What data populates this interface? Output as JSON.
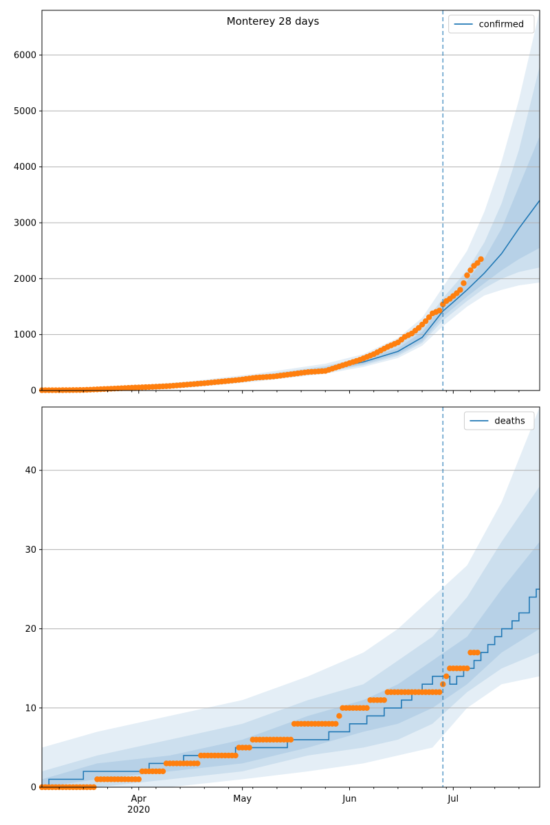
{
  "figure": {
    "title": "Monterey 28 days",
    "x_ticks": [
      {
        "date": "2020-04-01",
        "label": "Apr",
        "sub": "2020"
      },
      {
        "date": "2020-05-01",
        "label": "May",
        "sub": ""
      },
      {
        "date": "2020-06-01",
        "label": "Jun",
        "sub": ""
      },
      {
        "date": "2020-07-01",
        "label": "Jul",
        "sub": ""
      }
    ],
    "xlim": [
      "2020-03-04",
      "2020-07-26"
    ],
    "vline_date": "2020-06-28",
    "colors": {
      "model": "#1f77b4",
      "observed": "#ff7f0e",
      "band": "#1f77b4",
      "grid": "#b0b0b0"
    }
  },
  "chart_data": [
    {
      "type": "line",
      "legend": "confirmed",
      "legend_position": "top-right",
      "grid": "y",
      "ylim": [
        0,
        6800
      ],
      "yticks": [
        0,
        1000,
        2000,
        3000,
        4000,
        5000,
        6000
      ],
      "model_line": [
        [
          "2020-03-04",
          10
        ],
        [
          "2020-03-15",
          15
        ],
        [
          "2020-03-25",
          35
        ],
        [
          "2020-04-05",
          60
        ],
        [
          "2020-04-15",
          100
        ],
        [
          "2020-04-25",
          150
        ],
        [
          "2020-05-05",
          220
        ],
        [
          "2020-05-15",
          290
        ],
        [
          "2020-05-25",
          380
        ],
        [
          "2020-06-05",
          510
        ],
        [
          "2020-06-15",
          700
        ],
        [
          "2020-06-22",
          950
        ],
        [
          "2020-06-28",
          1420
        ],
        [
          "2020-07-01",
          1580
        ],
        [
          "2020-07-05",
          1800
        ],
        [
          "2020-07-10",
          2100
        ],
        [
          "2020-07-15",
          2450
        ],
        [
          "2020-07-20",
          2900
        ],
        [
          "2020-07-26",
          3400
        ]
      ],
      "bands": [
        {
          "name": "outer",
          "points": [
            [
              "2020-03-04",
              0,
              25
            ],
            [
              "2020-03-25",
              0,
              60
            ],
            [
              "2020-04-15",
              50,
              160
            ],
            [
              "2020-05-05",
              160,
              300
            ],
            [
              "2020-05-25",
              300,
              480
            ],
            [
              "2020-06-05",
              420,
              650
            ],
            [
              "2020-06-15",
              580,
              940
            ],
            [
              "2020-06-22",
              800,
              1300
            ],
            [
              "2020-06-28",
              1150,
              1850
            ],
            [
              "2020-07-05",
              1500,
              2500
            ],
            [
              "2020-07-10",
              1700,
              3200
            ],
            [
              "2020-07-15",
              1800,
              4100
            ],
            [
              "2020-07-20",
              1880,
              5200
            ],
            [
              "2020-07-26",
              1930,
              6800
            ]
          ]
        },
        {
          "name": "middle",
          "points": [
            [
              "2020-03-04",
              2,
              20
            ],
            [
              "2020-03-25",
              10,
              50
            ],
            [
              "2020-04-15",
              70,
              140
            ],
            [
              "2020-05-05",
              180,
              270
            ],
            [
              "2020-05-25",
              330,
              440
            ],
            [
              "2020-06-05",
              450,
              590
            ],
            [
              "2020-06-15",
              620,
              820
            ],
            [
              "2020-06-22",
              850,
              1150
            ],
            [
              "2020-06-28",
              1250,
              1650
            ],
            [
              "2020-07-05",
              1600,
              2150
            ],
            [
              "2020-07-10",
              1830,
              2650
            ],
            [
              "2020-07-15",
              2000,
              3350
            ],
            [
              "2020-07-20",
              2120,
              4300
            ],
            [
              "2020-07-26",
              2200,
              5800
            ]
          ]
        },
        {
          "name": "inner",
          "points": [
            [
              "2020-03-04",
              5,
              15
            ],
            [
              "2020-03-25",
              20,
              45
            ],
            [
              "2020-04-15",
              80,
              125
            ],
            [
              "2020-05-05",
              195,
              250
            ],
            [
              "2020-05-25",
              350,
              415
            ],
            [
              "2020-06-05",
              470,
              555
            ],
            [
              "2020-06-15",
              650,
              760
            ],
            [
              "2020-06-22",
              880,
              1050
            ],
            [
              "2020-06-28",
              1320,
              1550
            ],
            [
              "2020-07-05",
              1680,
              1960
            ],
            [
              "2020-07-10",
              1920,
              2360
            ],
            [
              "2020-07-15",
              2150,
              2900
            ],
            [
              "2020-07-20",
              2350,
              3650
            ],
            [
              "2020-07-26",
              2550,
              4550
            ]
          ]
        }
      ],
      "observed": [
        [
          "2020-03-04",
          5
        ],
        [
          "2020-03-10",
          6
        ],
        [
          "2020-03-16",
          10
        ],
        [
          "2020-03-20",
          20
        ],
        [
          "2020-03-25",
          35
        ],
        [
          "2020-03-30",
          50
        ],
        [
          "2020-04-05",
          65
        ],
        [
          "2020-04-10",
          80
        ],
        [
          "2020-04-15",
          105
        ],
        [
          "2020-04-20",
          130
        ],
        [
          "2020-04-25",
          160
        ],
        [
          "2020-04-30",
          190
        ],
        [
          "2020-05-05",
          230
        ],
        [
          "2020-05-10",
          250
        ],
        [
          "2020-05-15",
          290
        ],
        [
          "2020-05-20",
          330
        ],
        [
          "2020-05-25",
          350
        ],
        [
          "2020-05-30",
          450
        ],
        [
          "2020-06-04",
          550
        ],
        [
          "2020-06-08",
          650
        ],
        [
          "2020-06-12",
          780
        ],
        [
          "2020-06-15",
          860
        ],
        [
          "2020-06-17",
          960
        ],
        [
          "2020-06-19",
          1020
        ],
        [
          "2020-06-21",
          1120
        ],
        [
          "2020-06-23",
          1240
        ],
        [
          "2020-06-25",
          1380
        ],
        [
          "2020-06-27",
          1430
        ],
        [
          "2020-06-28",
          1540
        ],
        [
          "2020-06-29",
          1600
        ],
        [
          "2020-06-30",
          1640
        ],
        [
          "2020-07-01",
          1690
        ],
        [
          "2020-07-02",
          1740
        ],
        [
          "2020-07-03",
          1800
        ],
        [
          "2020-07-04",
          1920
        ],
        [
          "2020-07-05",
          2060
        ],
        [
          "2020-07-06",
          2150
        ],
        [
          "2020-07-07",
          2230
        ],
        [
          "2020-07-08",
          2280
        ],
        [
          "2020-07-09",
          2350
        ]
      ]
    },
    {
      "type": "line",
      "legend": "deaths",
      "legend_position": "top-right",
      "grid": "y",
      "ylim": [
        0,
        48
      ],
      "yticks": [
        0,
        10,
        20,
        30,
        40
      ],
      "step_line": [
        [
          "2020-03-04",
          0
        ],
        [
          "2020-03-06",
          1
        ],
        [
          "2020-03-15",
          1
        ],
        [
          "2020-03-16",
          2
        ],
        [
          "2020-04-04",
          3
        ],
        [
          "2020-04-14",
          4
        ],
        [
          "2020-04-22",
          4
        ],
        [
          "2020-04-29",
          5
        ],
        [
          "2020-05-08",
          5
        ],
        [
          "2020-05-14",
          6
        ],
        [
          "2020-05-26",
          7
        ],
        [
          "2020-06-01",
          8
        ],
        [
          "2020-06-06",
          9
        ],
        [
          "2020-06-11",
          10
        ],
        [
          "2020-06-16",
          11
        ],
        [
          "2020-06-19",
          12
        ],
        [
          "2020-06-22",
          13
        ],
        [
          "2020-06-25",
          14
        ],
        [
          "2020-06-29",
          14
        ],
        [
          "2020-06-30",
          13
        ],
        [
          "2020-07-02",
          14
        ],
        [
          "2020-07-04",
          15
        ],
        [
          "2020-07-07",
          16
        ],
        [
          "2020-07-09",
          17
        ],
        [
          "2020-07-11",
          18
        ],
        [
          "2020-07-13",
          19
        ],
        [
          "2020-07-15",
          20
        ],
        [
          "2020-07-18",
          21
        ],
        [
          "2020-07-20",
          22
        ],
        [
          "2020-07-23",
          24
        ],
        [
          "2020-07-25",
          25
        ],
        [
          "2020-07-26",
          25
        ]
      ],
      "bands": [
        {
          "name": "outer",
          "points": [
            [
              "2020-03-04",
              0,
              5
            ],
            [
              "2020-03-20",
              0,
              7
            ],
            [
              "2020-04-10",
              0,
              9
            ],
            [
              "2020-05-01",
              1,
              11
            ],
            [
              "2020-05-20",
              2,
              14
            ],
            [
              "2020-06-05",
              3,
              17
            ],
            [
              "2020-06-15",
              4,
              20
            ],
            [
              "2020-06-25",
              5,
              24
            ],
            [
              "2020-07-05",
              10,
              28
            ],
            [
              "2020-07-15",
              13,
              36
            ],
            [
              "2020-07-26",
              14,
              48
            ]
          ]
        },
        {
          "name": "middle",
          "points": [
            [
              "2020-03-04",
              0,
              2
            ],
            [
              "2020-03-20",
              0,
              4
            ],
            [
              "2020-04-10",
              1,
              6
            ],
            [
              "2020-05-01",
              2,
              8
            ],
            [
              "2020-05-20",
              4,
              11
            ],
            [
              "2020-06-05",
              5,
              13
            ],
            [
              "2020-06-15",
              6,
              16
            ],
            [
              "2020-06-25",
              8,
              19
            ],
            [
              "2020-07-05",
              12,
              24
            ],
            [
              "2020-07-15",
              15,
              31
            ],
            [
              "2020-07-26",
              17,
              38
            ]
          ]
        },
        {
          "name": "inner",
          "points": [
            [
              "2020-03-04",
              0,
              1
            ],
            [
              "2020-03-20",
              1,
              3
            ],
            [
              "2020-04-10",
              2,
              4
            ],
            [
              "2020-05-01",
              3,
              6
            ],
            [
              "2020-05-20",
              5,
              9
            ],
            [
              "2020-06-05",
              7,
              11
            ],
            [
              "2020-06-15",
              8,
              13
            ],
            [
              "2020-06-25",
              10,
              16
            ],
            [
              "2020-07-05",
              13,
              19
            ],
            [
              "2020-07-15",
              17,
              25
            ],
            [
              "2020-07-26",
              20,
              31
            ]
          ]
        }
      ],
      "observed_runs": [
        [
          "2020-03-04",
          "2020-03-19",
          0
        ],
        [
          "2020-03-20",
          "2020-04-01",
          1
        ],
        [
          "2020-04-02",
          "2020-04-08",
          2
        ],
        [
          "2020-04-09",
          "2020-04-18",
          3
        ],
        [
          "2020-04-19",
          "2020-04-29",
          4
        ],
        [
          "2020-04-30",
          "2020-05-03",
          5
        ],
        [
          "2020-05-04",
          "2020-05-15",
          6
        ],
        [
          "2020-05-16",
          "2020-05-28",
          8
        ],
        [
          "2020-05-29",
          "2020-05-29",
          9
        ],
        [
          "2020-05-30",
          "2020-06-06",
          10
        ],
        [
          "2020-06-07",
          "2020-06-11",
          11
        ],
        [
          "2020-06-12",
          "2020-06-27",
          12
        ],
        [
          "2020-06-28",
          "2020-06-28",
          13
        ],
        [
          "2020-06-29",
          "2020-06-29",
          14
        ],
        [
          "2020-06-30",
          "2020-07-05",
          15
        ],
        [
          "2020-07-06",
          "2020-07-08",
          17
        ]
      ]
    }
  ]
}
